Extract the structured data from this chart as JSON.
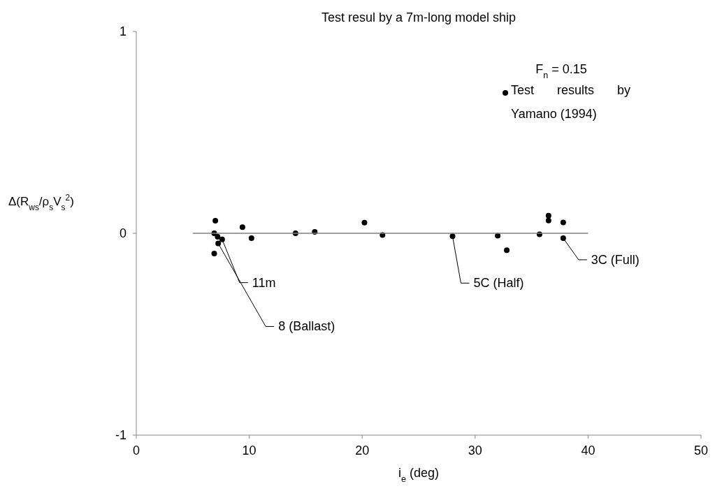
{
  "chart_data": {
    "type": "scatter",
    "title": "Test resul by a 7m-long model ship",
    "xlabel": "i$_{e}$ (deg)",
    "ylabel": "Δ(R$_{ws}$/ρ$_{s}$V$_{s}$$^{2}$)",
    "xlim": [
      0,
      50
    ],
    "xticks": [
      0,
      10,
      20,
      30,
      40,
      50
    ],
    "ylim": [
      -1,
      1
    ],
    "yticks": [
      -1,
      0,
      1
    ],
    "grid": false,
    "legend": "top right",
    "series": [
      {
        "name": "Test results by Yamano (1994)",
        "marker": "circle",
        "color": "#000000",
        "x": [
          7.0,
          6.9,
          7.2,
          7.6,
          7.25,
          6.9,
          9.4,
          10.2,
          14.1,
          15.8,
          20.2,
          21.8,
          28.0,
          32.0,
          32.8,
          35.7,
          36.5,
          36.5,
          37.8,
          37.8
        ],
        "values": [
          0.062,
          0,
          -0.017,
          -0.03,
          -0.05,
          -0.1,
          0.03,
          -0.024,
          0,
          0.007,
          0.053,
          -0.009,
          -0.015,
          -0.012,
          -0.084,
          -0.005,
          0.087,
          0.063,
          0.054,
          -0.024
        ]
      },
      {
        "type": "line",
        "marker": "none",
        "color": "#808080",
        "x": [
          5,
          40
        ],
        "values": [
          0,
          0
        ]
      }
    ],
    "annotations": [
      "F$_{n}$ = 0.15",
      {
        "text": "11m",
        "x": 7.6,
        "y": -0.03
      },
      {
        "text": "8 (Ballast)",
        "x": 7.25,
        "y": -0.05
      },
      {
        "text": "5C (Half)",
        "x": 28.0,
        "y": -0.015
      },
      {
        "text": "3C (Full)",
        "x": 37.8,
        "y": -0.024
      }
    ]
  }
}
